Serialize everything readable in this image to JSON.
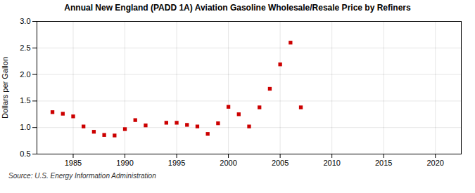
{
  "chart_data": {
    "type": "scatter",
    "title": "Annual New England (PADD 1A) Aviation Gasoline Wholesale/Resale Price by Refiners",
    "ylabel": "Dollars per Gallon",
    "source": "Source: U.S. Energy Information Administration",
    "color": "#cc0000",
    "marker": "square",
    "grid": true,
    "xlim": [
      1981.5,
      2022.5
    ],
    "ylim": [
      0.5,
      3.0
    ],
    "xticks": [
      1985,
      1990,
      1995,
      2000,
      2005,
      2010,
      2015,
      2020
    ],
    "yticks": [
      0.5,
      {
        "value": 1.0,
        "label": "1.0"
      },
      1.5,
      {
        "value": 2.0,
        "label": "2.0"
      },
      2.5,
      {
        "value": 3.0,
        "label": "3.0"
      }
    ],
    "x": [
      1983,
      1984,
      1985,
      1986,
      1987,
      1988,
      1989,
      1990,
      1991,
      1992,
      1994,
      1995,
      1996,
      1997,
      1998,
      1999,
      2000,
      2001,
      2002,
      2003,
      2004,
      2005,
      2006,
      2007
    ],
    "values": [
      1.29,
      1.26,
      1.21,
      1.02,
      0.92,
      0.86,
      0.85,
      0.97,
      1.14,
      1.04,
      1.09,
      1.09,
      1.05,
      1.02,
      0.88,
      1.08,
      1.39,
      1.25,
      1.02,
      1.38,
      1.73,
      2.19,
      2.6,
      1.38
    ]
  }
}
